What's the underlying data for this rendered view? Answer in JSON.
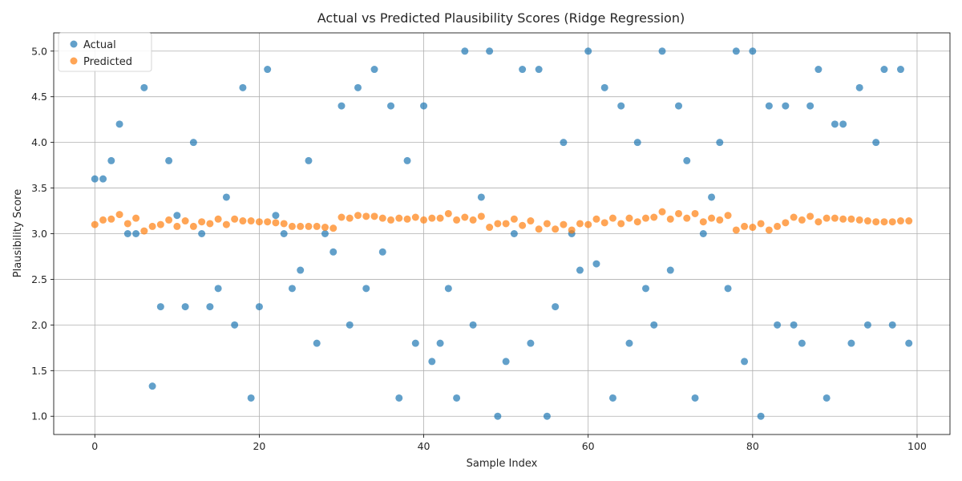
{
  "chart_data": {
    "type": "scatter",
    "title": "Actual vs Predicted Plausibility Scores (Ridge Regression)",
    "xlabel": "Sample Index",
    "ylabel": "Plausibility Score",
    "xlim": [
      -5,
      104
    ],
    "ylim": [
      0.8,
      5.2
    ],
    "xticks": [
      0,
      20,
      40,
      60,
      80,
      100
    ],
    "yticks": [
      1.0,
      1.5,
      2.0,
      2.5,
      3.0,
      3.5,
      4.0,
      4.5,
      5.0
    ],
    "grid": true,
    "legend": "top-left",
    "series": [
      {
        "name": "Actual",
        "color": "#1f77b4",
        "values": [
          3.6,
          3.6,
          3.8,
          4.2,
          3.0,
          3.0,
          4.6,
          1.33,
          2.2,
          3.8,
          3.2,
          2.2,
          4.0,
          3.0,
          2.2,
          2.4,
          3.4,
          2.0,
          4.6,
          1.2,
          2.2,
          4.8,
          3.2,
          3.0,
          2.4,
          2.6,
          3.8,
          1.8,
          3.0,
          2.8,
          4.4,
          2.0,
          4.6,
          2.4,
          4.8,
          2.8,
          4.4,
          1.2,
          3.8,
          1.8,
          4.4,
          1.6,
          1.8,
          2.4,
          1.2,
          5.0,
          2.0,
          3.4,
          5.0,
          1.0,
          1.6,
          3.0,
          4.8,
          1.8,
          4.8,
          1.0,
          2.2,
          4.0,
          3.0,
          2.6,
          5.0,
          2.67,
          4.6,
          1.2,
          4.4,
          1.8,
          4.0,
          2.4,
          2.0,
          5.0,
          2.6,
          4.4,
          3.8,
          1.2,
          3.0,
          3.4,
          4.0,
          2.4,
          5.0,
          1.6,
          5.0,
          1.0,
          4.4,
          2.0,
          4.4,
          2.0,
          1.8,
          4.4,
          4.8,
          1.2,
          4.2,
          4.2,
          1.8,
          4.6,
          2.0,
          4.0,
          4.8,
          2.0,
          4.8,
          1.8
        ]
      },
      {
        "name": "Predicted",
        "color": "#ff7f0e",
        "values": [
          3.1,
          3.15,
          3.16,
          3.21,
          3.11,
          3.17,
          3.03,
          3.08,
          3.1,
          3.15,
          3.08,
          3.14,
          3.08,
          3.13,
          3.11,
          3.16,
          3.1,
          3.16,
          3.14,
          3.14,
          3.13,
          3.13,
          3.12,
          3.11,
          3.08,
          3.08,
          3.08,
          3.08,
          3.07,
          3.06,
          3.18,
          3.17,
          3.2,
          3.19,
          3.19,
          3.17,
          3.15,
          3.17,
          3.16,
          3.18,
          3.15,
          3.17,
          3.17,
          3.22,
          3.15,
          3.18,
          3.15,
          3.19,
          3.07,
          3.11,
          3.11,
          3.16,
          3.09,
          3.14,
          3.05,
          3.11,
          3.05,
          3.1,
          3.04,
          3.11,
          3.1,
          3.16,
          3.12,
          3.17,
          3.11,
          3.17,
          3.13,
          3.17,
          3.18,
          3.24,
          3.16,
          3.22,
          3.17,
          3.22,
          3.13,
          3.17,
          3.15,
          3.2,
          3.04,
          3.08,
          3.07,
          3.11,
          3.04,
          3.08,
          3.12,
          3.18,
          3.15,
          3.19,
          3.13,
          3.17,
          3.17,
          3.16,
          3.16,
          3.15,
          3.14,
          3.13,
          3.13,
          3.13,
          3.14,
          3.14
        ]
      }
    ]
  }
}
